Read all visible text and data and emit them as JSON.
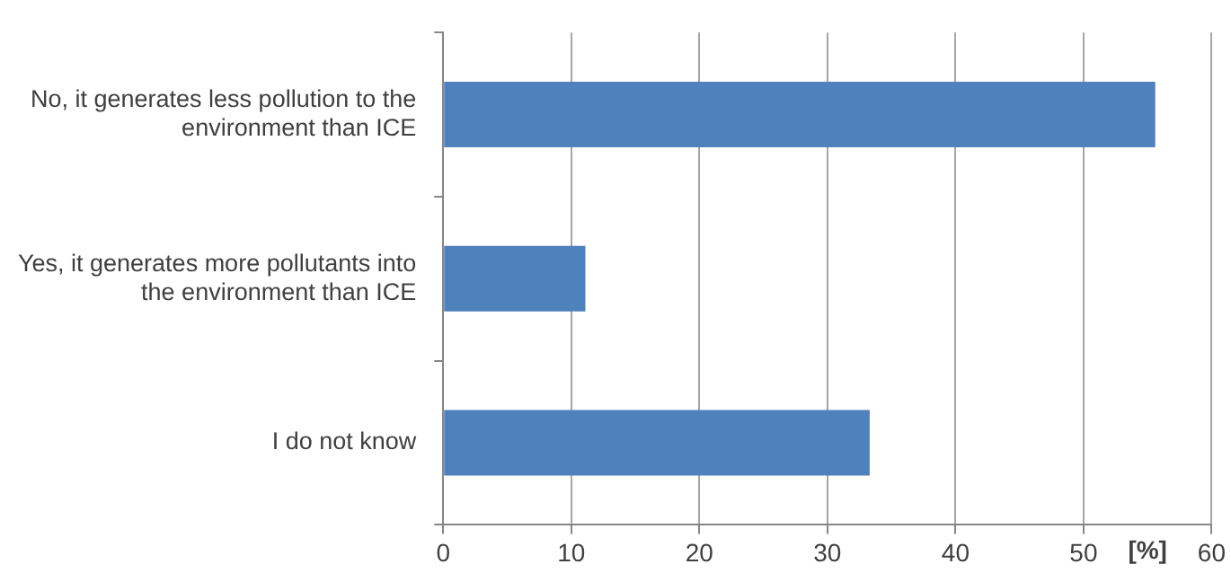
{
  "chart_data": {
    "type": "bar",
    "orientation": "horizontal",
    "xlabel": "[%]",
    "categories": [
      "No, it generates less pollution to the environment than ICE",
      "Yes, it generates more pollutants into the environment than ICE",
      "I do not know"
    ],
    "values": [
      55.6,
      11.1,
      33.3
    ],
    "color": "#4f81bd",
    "xlim": [
      0,
      60
    ],
    "xticks": [
      0,
      10,
      20,
      30,
      40,
      50,
      60
    ],
    "grid": "x",
    "legend": false
  }
}
